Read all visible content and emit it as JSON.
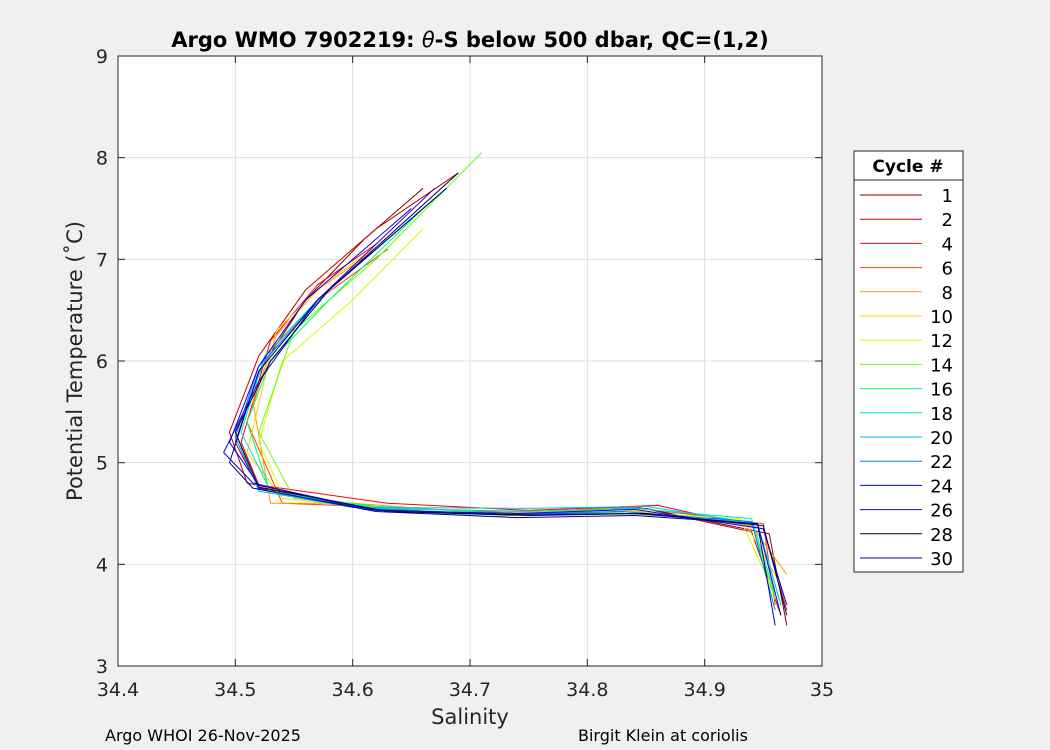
{
  "chart_data": {
    "type": "line",
    "title_prefix": "Argo WMO 7902219: ",
    "title_theta": "θ",
    "title_suffix": "-S below 500 dbar,  QC=(1,2)",
    "xlabel": "Salinity",
    "ylabel": "Potential Temperature (˚C)",
    "xlim": [
      34.4,
      35
    ],
    "ylim": [
      3,
      9
    ],
    "xticks": [
      "34.4",
      "34.5",
      "34.6",
      "34.7",
      "34.8",
      "34.9",
      "35"
    ],
    "yticks": [
      "3",
      "4",
      "5",
      "6",
      "7",
      "8",
      "9"
    ],
    "grid": true,
    "legend_title": "Cycle #",
    "legend_position": "outside-right",
    "series": [
      {
        "name": "1",
        "color": "#800000",
        "x": [
          34.97,
          34.955,
          34.85,
          34.75,
          34.62,
          34.52,
          34.5,
          34.52,
          34.56,
          34.61,
          34.66
        ],
        "y": [
          3.4,
          4.3,
          4.55,
          4.52,
          4.55,
          4.75,
          5.2,
          5.9,
          6.6,
          7.2,
          7.7
        ]
      },
      {
        "name": "2",
        "color": "#c00000",
        "x": [
          34.965,
          34.94,
          34.84,
          34.74,
          34.6,
          34.51,
          34.495,
          34.52,
          34.56,
          34.62,
          34.69
        ],
        "y": [
          3.5,
          4.32,
          4.57,
          4.5,
          4.58,
          4.8,
          5.3,
          6.05,
          6.7,
          7.3,
          7.85
        ]
      },
      {
        "name": "4",
        "color": "#ff0000",
        "x": [
          34.97,
          34.95,
          34.86,
          34.75,
          34.63,
          34.52,
          34.505,
          34.53,
          34.57,
          34.62
        ],
        "y": [
          3.55,
          4.35,
          4.58,
          4.53,
          4.6,
          4.78,
          5.2,
          6.2,
          6.75,
          7.15
        ]
      },
      {
        "name": "6",
        "color": "#ff4000",
        "x": [
          34.96,
          34.95,
          34.84,
          34.73,
          34.61,
          34.54,
          34.51,
          34.53,
          34.57,
          34.63
        ],
        "y": [
          3.6,
          4.4,
          4.56,
          4.51,
          4.57,
          4.6,
          5.4,
          6.1,
          6.6,
          7.1
        ]
      },
      {
        "name": "8",
        "color": "#ff9900",
        "x": [
          34.97,
          34.94,
          34.82,
          34.72,
          34.6,
          34.53,
          34.515,
          34.535,
          34.57,
          34.62
        ],
        "y": [
          3.9,
          4.38,
          4.55,
          4.5,
          4.6,
          4.6,
          5.6,
          6.25,
          6.7,
          7.1
        ]
      },
      {
        "name": "10",
        "color": "#ffd000",
        "x": [
          34.965,
          34.935,
          34.83,
          34.71,
          34.61,
          34.54,
          34.51,
          34.535,
          34.58,
          34.63
        ],
        "y": [
          3.8,
          4.4,
          4.54,
          4.49,
          4.56,
          4.65,
          5.1,
          6.3,
          6.8,
          7.2
        ]
      },
      {
        "name": "12",
        "color": "#ccff00",
        "x": [
          34.96,
          34.93,
          34.81,
          34.72,
          34.62,
          34.54,
          34.52,
          34.54,
          34.6,
          34.66
        ],
        "y": [
          3.7,
          4.45,
          4.53,
          4.5,
          4.54,
          4.7,
          5.2,
          6.0,
          6.6,
          7.3
        ]
      },
      {
        "name": "14",
        "color": "#66ff00",
        "x": [
          34.96,
          34.94,
          34.82,
          34.71,
          34.63,
          34.55,
          34.52,
          34.55,
          34.62,
          34.71
        ],
        "y": [
          3.65,
          4.42,
          4.51,
          4.47,
          4.55,
          4.65,
          5.3,
          6.3,
          7.0,
          8.05
        ]
      },
      {
        "name": "16",
        "color": "#00ff66",
        "x": [
          34.965,
          34.945,
          34.83,
          34.73,
          34.62,
          34.53,
          34.51,
          34.53,
          34.58,
          34.66
        ],
        "y": [
          3.6,
          4.4,
          4.52,
          4.5,
          4.57,
          4.7,
          5.4,
          6.0,
          6.6,
          7.5
        ]
      },
      {
        "name": "18",
        "color": "#00e6c0",
        "x": [
          34.96,
          34.94,
          34.84,
          34.74,
          34.62,
          34.53,
          34.505,
          34.525,
          34.57,
          34.66
        ],
        "y": [
          3.7,
          4.45,
          4.55,
          4.52,
          4.55,
          4.72,
          5.3,
          6.05,
          6.6,
          7.5
        ]
      },
      {
        "name": "20",
        "color": "#00bfff",
        "x": [
          34.965,
          34.945,
          34.85,
          34.75,
          34.6,
          34.52,
          34.5,
          34.525,
          34.57,
          34.67
        ],
        "y": [
          3.6,
          4.4,
          4.57,
          4.55,
          4.56,
          4.72,
          5.3,
          6.0,
          6.6,
          7.6
        ]
      },
      {
        "name": "22",
        "color": "#0080ff",
        "x": [
          34.96,
          34.94,
          34.83,
          34.73,
          34.61,
          34.52,
          34.5,
          34.52,
          34.58,
          34.68
        ],
        "y": [
          3.55,
          4.42,
          4.52,
          4.49,
          4.55,
          4.74,
          5.25,
          5.95,
          6.7,
          7.7
        ]
      },
      {
        "name": "24",
        "color": "#0000ff",
        "x": [
          34.97,
          34.95,
          34.84,
          34.74,
          34.62,
          34.52,
          34.495,
          34.52,
          34.56,
          34.65
        ],
        "y": [
          3.6,
          4.35,
          4.54,
          4.5,
          4.53,
          4.78,
          5.2,
          5.95,
          6.6,
          7.5
        ]
      },
      {
        "name": "26",
        "color": "#2000c0",
        "x": [
          34.965,
          34.945,
          34.84,
          34.73,
          34.61,
          34.515,
          34.49,
          34.52,
          34.57,
          34.67
        ],
        "y": [
          3.5,
          4.4,
          4.5,
          4.49,
          4.54,
          4.8,
          5.1,
          5.8,
          6.6,
          7.7
        ]
      },
      {
        "name": "28",
        "color": "#000040",
        "x": [
          34.97,
          34.95,
          34.85,
          34.75,
          34.63,
          34.52,
          34.5,
          34.53,
          34.58,
          34.69
        ],
        "y": [
          3.5,
          4.38,
          4.5,
          4.48,
          4.52,
          4.76,
          5.3,
          6.0,
          6.7,
          7.85
        ]
      },
      {
        "name": "30",
        "color": "#0000a0",
        "x": [
          34.96,
          34.945,
          34.84,
          34.74,
          34.62,
          34.515,
          34.495,
          34.52,
          34.57,
          34.68
        ],
        "y": [
          3.4,
          4.4,
          4.48,
          4.46,
          4.52,
          4.75,
          5.0,
          5.9,
          6.6,
          7.7
        ]
      }
    ]
  },
  "footer": {
    "left": "Argo WHOI 26-Nov-2025",
    "right": "Birgit Klein at coriolis"
  }
}
